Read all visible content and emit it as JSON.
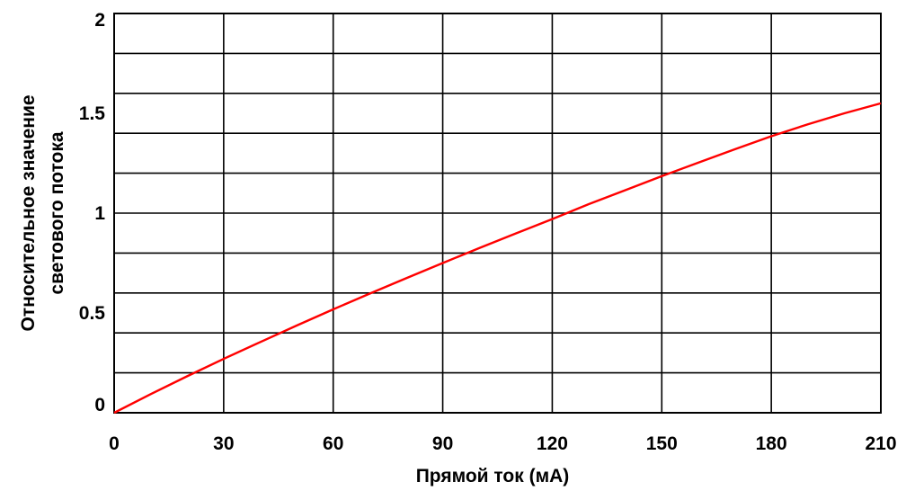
{
  "chart_data": {
    "type": "line",
    "title": "",
    "xlabel": "Прямой ток (мА)",
    "ylabel_lines": [
      "Относительное значение",
      "светового потока"
    ],
    "xlim": [
      0,
      210
    ],
    "ylim": [
      0,
      2
    ],
    "x_ticks": [
      0,
      30,
      60,
      90,
      120,
      150,
      180,
      210
    ],
    "x_tick_labels": [
      "0",
      "30",
      "60",
      "90",
      "120",
      "150",
      "180",
      "210"
    ],
    "y_ticks": [
      0,
      0.5,
      1,
      1.5,
      2
    ],
    "y_tick_labels": [
      "0",
      "0.5",
      "1",
      "1.5",
      "2"
    ],
    "grid": true,
    "series": [
      {
        "color": "#ff0000",
        "x": [
          0,
          10,
          20,
          30,
          40,
          50,
          60,
          70,
          80,
          90,
          100,
          110,
          120,
          130,
          140,
          150,
          160,
          170,
          180,
          190,
          200,
          210
        ],
        "y": [
          0,
          0.093,
          0.183,
          0.27,
          0.354,
          0.437,
          0.518,
          0.597,
          0.674,
          0.75,
          0.825,
          0.898,
          0.97,
          1.045,
          1.115,
          1.185,
          1.253,
          1.32,
          1.385,
          1.445,
          1.5,
          1.55
        ]
      }
    ]
  }
}
